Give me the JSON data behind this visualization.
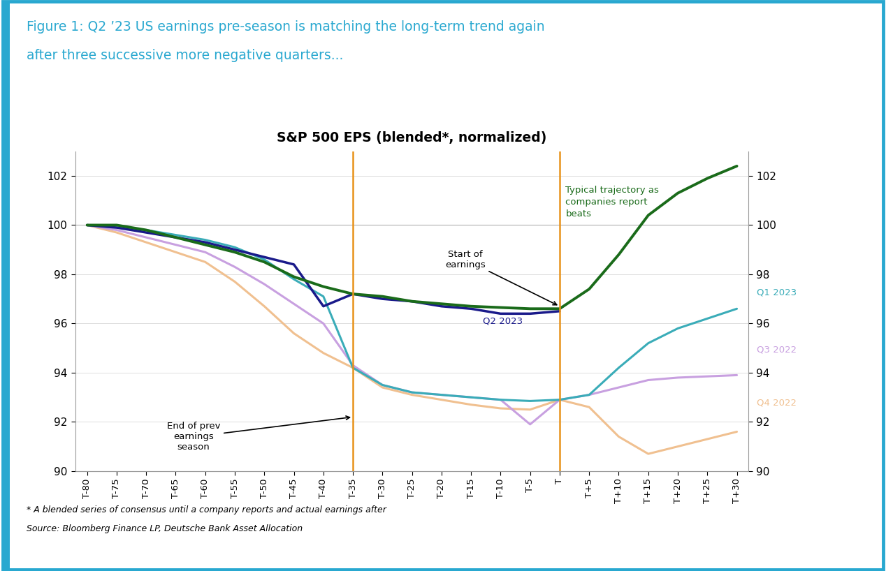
{
  "title": "S&P 500 EPS (blended*, normalized)",
  "figure_title_line1": "Figure 1: Q2 ’23 US earnings pre-season is matching the long-term trend again",
  "figure_title_line2": "after three successive more negative quarters...",
  "footnote1": "* A blended series of consensus until a company reports and actual earnings after",
  "footnote2": "Source: Bloomberg Finance LP, Deutsche Bank Asset Allocation",
  "x_ticks": [
    "T-80",
    "T-75",
    "T-70",
    "T-65",
    "T-60",
    "T-55",
    "T-50",
    "T-45",
    "T-40",
    "T-35",
    "T-30",
    "T-25",
    "T-20",
    "T-15",
    "T-10",
    "T-5",
    "T",
    "T+5",
    "T+10",
    "T+15",
    "T+20",
    "T+25",
    "T+30"
  ],
  "x_values": [
    -80,
    -75,
    -70,
    -65,
    -60,
    -55,
    -50,
    -45,
    -40,
    -35,
    -30,
    -25,
    -20,
    -15,
    -10,
    -5,
    0,
    5,
    10,
    15,
    20,
    25,
    30
  ],
  "ylim": [
    90,
    103
  ],
  "yticks": [
    90,
    92,
    94,
    96,
    98,
    100,
    102
  ],
  "vline1": -35,
  "vline2": 0,
  "series": {
    "typical": {
      "label": "Typical trajectory as\ncompanies report\nbeats",
      "color": "#1a6b1a",
      "linewidth": 2.8,
      "x": [
        -80,
        -75,
        -70,
        -65,
        -60,
        -55,
        -50,
        -45,
        -40,
        -35,
        -30,
        -25,
        -20,
        -15,
        -10,
        -5,
        0,
        5,
        10,
        15,
        20,
        25,
        30
      ],
      "y": [
        100.0,
        100.0,
        99.8,
        99.5,
        99.2,
        98.9,
        98.5,
        97.9,
        97.5,
        97.2,
        97.1,
        96.9,
        96.8,
        96.7,
        96.65,
        96.6,
        96.6,
        97.4,
        98.8,
        100.4,
        101.3,
        101.9,
        102.4
      ]
    },
    "q2_2023": {
      "label": "Q2 2023",
      "color": "#1a1a8a",
      "linewidth": 2.5,
      "x": [
        -80,
        -75,
        -70,
        -65,
        -60,
        -55,
        -50,
        -45,
        -40,
        -35,
        -30,
        -25,
        -20,
        -15,
        -10,
        -5,
        0
      ],
      "y": [
        100.0,
        99.9,
        99.7,
        99.5,
        99.3,
        99.0,
        98.7,
        98.4,
        96.7,
        97.2,
        97.0,
        96.9,
        96.7,
        96.6,
        96.4,
        96.4,
        96.5
      ]
    },
    "q1_2023": {
      "label": "Q1 2023",
      "color": "#3aacb8",
      "linewidth": 2.2,
      "x": [
        -80,
        -75,
        -70,
        -65,
        -60,
        -55,
        -50,
        -45,
        -40,
        -35,
        -30,
        -25,
        -20,
        -15,
        -10,
        -5,
        0,
        5,
        10,
        15,
        20,
        25,
        30
      ],
      "y": [
        100.0,
        99.9,
        99.8,
        99.6,
        99.4,
        99.1,
        98.6,
        97.8,
        97.1,
        94.2,
        93.5,
        93.2,
        93.1,
        93.0,
        92.9,
        92.85,
        92.9,
        93.1,
        94.2,
        95.2,
        95.8,
        96.2,
        96.6
      ]
    },
    "q3_2022": {
      "label": "Q3 2022",
      "color": "#c8a0e0",
      "linewidth": 2.2,
      "x": [
        -80,
        -75,
        -70,
        -65,
        -60,
        -55,
        -50,
        -45,
        -40,
        -35,
        -30,
        -25,
        -20,
        -15,
        -10,
        -5,
        0,
        5,
        10,
        15,
        20,
        25,
        30
      ],
      "y": [
        100.0,
        99.8,
        99.5,
        99.2,
        98.9,
        98.3,
        97.6,
        96.8,
        96.0,
        94.3,
        93.5,
        93.2,
        93.1,
        93.0,
        92.9,
        91.9,
        92.9,
        93.1,
        93.4,
        93.7,
        93.8,
        93.85,
        93.9
      ]
    },
    "q4_2022": {
      "label": "Q4 2022",
      "color": "#f0c090",
      "linewidth": 2.2,
      "x": [
        -80,
        -75,
        -70,
        -65,
        -60,
        -55,
        -50,
        -45,
        -40,
        -35,
        -30,
        -25,
        -20,
        -15,
        -10,
        -5,
        0,
        5,
        10,
        15,
        20,
        25,
        30
      ],
      "y": [
        100.0,
        99.7,
        99.3,
        98.9,
        98.5,
        97.7,
        96.7,
        95.6,
        94.8,
        94.2,
        93.4,
        93.1,
        92.9,
        92.7,
        92.55,
        92.5,
        92.9,
        92.6,
        91.4,
        90.7,
        91.0,
        91.3,
        91.6
      ]
    }
  },
  "border_color": "#29a8d0",
  "background_color": "#ffffff"
}
